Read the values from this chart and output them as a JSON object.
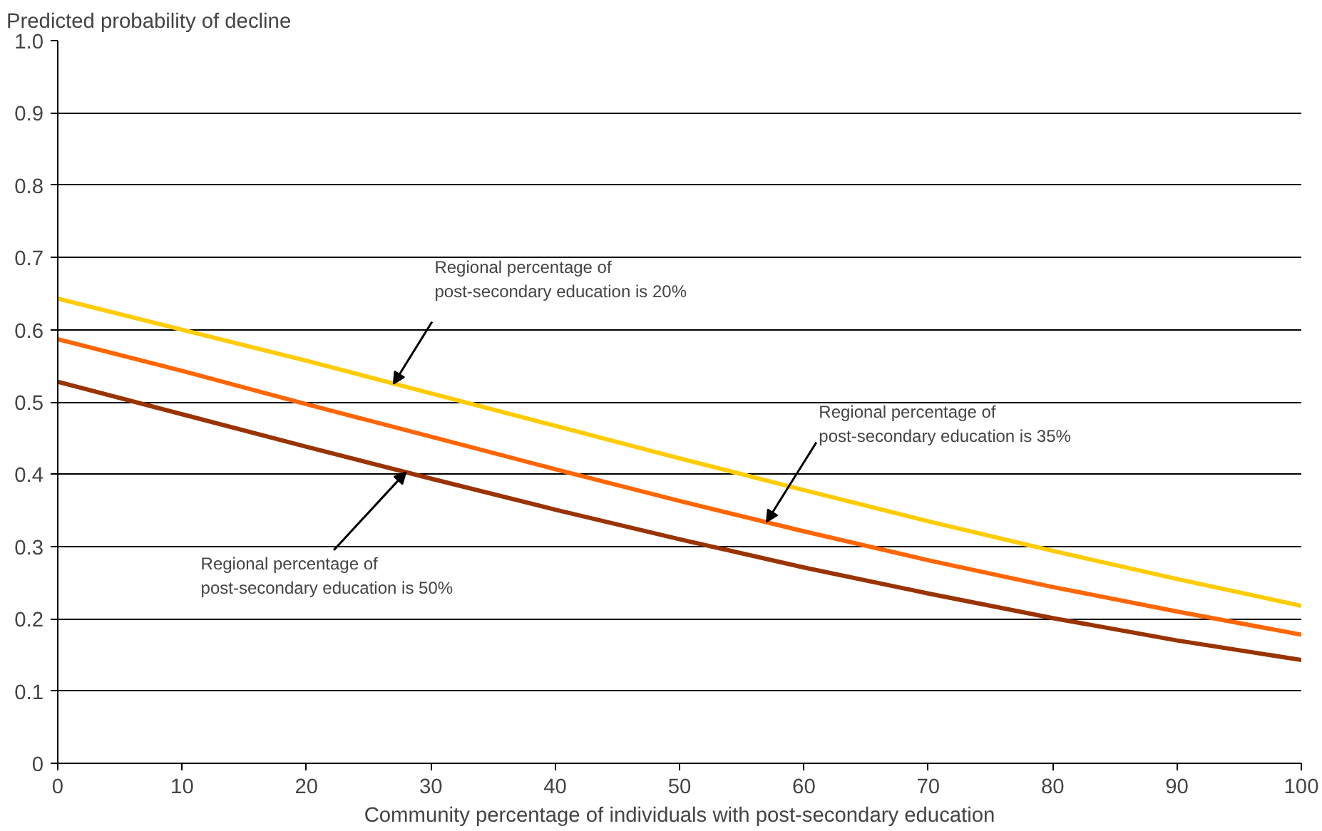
{
  "chart_data": {
    "type": "line",
    "ylabel": "Predicted probability of decline",
    "xlabel": "Community percentage of individuals with post-secondary education",
    "x": [
      0,
      10,
      20,
      30,
      40,
      50,
      60,
      70,
      80,
      90,
      100
    ],
    "series": [
      {
        "color": "#ffcc00",
        "values": [
          0.643,
          0.6,
          0.557,
          0.512,
          0.467,
          0.422,
          0.378,
          0.335,
          0.294,
          0.255,
          0.218
        ]
      },
      {
        "color": "#ff6600",
        "values": [
          0.587,
          0.543,
          0.497,
          0.452,
          0.407,
          0.363,
          0.321,
          0.281,
          0.244,
          0.21,
          0.178
        ]
      },
      {
        "color": "#993300",
        "values": [
          0.528,
          0.483,
          0.438,
          0.394,
          0.351,
          0.31,
          0.271,
          0.235,
          0.201,
          0.17,
          0.143
        ]
      }
    ],
    "annotations": [
      {
        "text": "Regional percentage of\npost-secondary education is 20%",
        "x": 27,
        "y": 0.525
      },
      {
        "text": "Regional percentage of\npost-secondary education is 35%",
        "x": 57,
        "y": 0.334
      },
      {
        "text": "Regional percentage of\npost-secondary education is 50%",
        "x": 28,
        "y": 0.403
      }
    ],
    "xlim": [
      0,
      100
    ],
    "xticks": [
      0,
      10,
      20,
      30,
      40,
      50,
      60,
      70,
      80,
      90,
      100
    ],
    "ylim": [
      0,
      1.0
    ],
    "yticks": [
      0,
      {
        "value": 0.1,
        "label": "0.1"
      },
      {
        "value": 0.2,
        "label": "0.2"
      },
      {
        "value": 0.3,
        "label": "0.3"
      },
      {
        "value": 0.4,
        "label": "0.4"
      },
      {
        "value": 0.5,
        "label": "0.5"
      },
      {
        "value": 0.6,
        "label": "0.6"
      },
      {
        "value": 0.7,
        "label": "0.7"
      },
      {
        "value": 0.8,
        "label": "0.8"
      },
      {
        "value": 0.9,
        "label": "0.9"
      },
      {
        "value": 1.0,
        "label": "1.0"
      }
    ],
    "grid": "y",
    "marker": "none",
    "line_style": "solid"
  }
}
